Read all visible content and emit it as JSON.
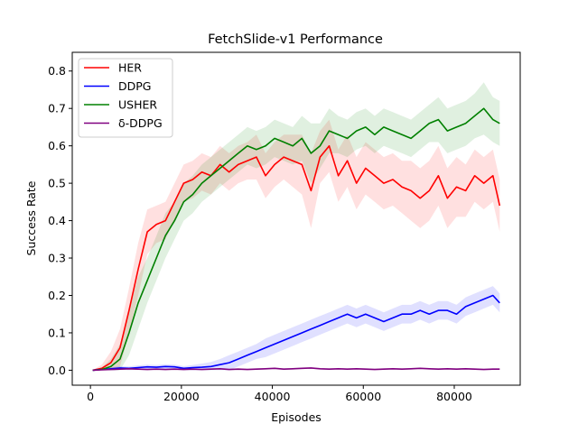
{
  "chart_data": {
    "type": "line",
    "title": "FetchSlide-v1 Performance",
    "xlabel": "Episodes",
    "ylabel": "Success Rate",
    "xlim": [
      -4000,
      94500
    ],
    "ylim": [
      -0.04,
      0.85
    ],
    "xticks": [
      0,
      20000,
      40000,
      60000,
      80000
    ],
    "xtick_labels": [
      "0",
      "20000",
      "40000",
      "60000",
      "80000"
    ],
    "yticks": [
      0.0,
      0.1,
      0.2,
      0.3,
      0.4,
      0.5,
      0.6,
      0.7,
      0.8
    ],
    "ytick_labels": [
      "0.0",
      "0.1",
      "0.2",
      "0.3",
      "0.4",
      "0.5",
      "0.6",
      "0.7",
      "0.8"
    ],
    "grid": false,
    "legend_position": "top-left",
    "x": [
      500,
      2500,
      4500,
      6500,
      8500,
      10500,
      12500,
      14500,
      16500,
      18500,
      20500,
      22500,
      24500,
      26500,
      28500,
      30500,
      32500,
      34500,
      36500,
      38500,
      40500,
      42500,
      44500,
      46500,
      48500,
      50500,
      52500,
      54500,
      56500,
      58500,
      60500,
      62500,
      64500,
      66500,
      68500,
      70500,
      72500,
      74500,
      76500,
      78500,
      80500,
      82500,
      84500,
      86500,
      88500,
      90000
    ],
    "series": [
      {
        "name": "HER",
        "color": "#ff0000",
        "values": [
          0.0,
          0.005,
          0.02,
          0.06,
          0.16,
          0.27,
          0.37,
          0.39,
          0.4,
          0.45,
          0.5,
          0.51,
          0.53,
          0.52,
          0.55,
          0.53,
          0.55,
          0.56,
          0.57,
          0.52,
          0.55,
          0.57,
          0.56,
          0.55,
          0.48,
          0.57,
          0.6,
          0.52,
          0.56,
          0.5,
          0.54,
          0.52,
          0.5,
          0.51,
          0.49,
          0.48,
          0.46,
          0.48,
          0.52,
          0.46,
          0.49,
          0.48,
          0.52,
          0.5,
          0.52,
          0.44
        ],
        "band": [
          0.0,
          0.01,
          0.03,
          0.05,
          0.06,
          0.07,
          0.06,
          0.05,
          0.05,
          0.05,
          0.05,
          0.05,
          0.05,
          0.05,
          0.05,
          0.05,
          0.05,
          0.05,
          0.06,
          0.06,
          0.06,
          0.06,
          0.07,
          0.08,
          0.1,
          0.07,
          0.07,
          0.07,
          0.07,
          0.07,
          0.07,
          0.07,
          0.07,
          0.07,
          0.07,
          0.08,
          0.08,
          0.08,
          0.08,
          0.08,
          0.08,
          0.07,
          0.07,
          0.07,
          0.07,
          0.07
        ]
      },
      {
        "name": "DDPG",
        "color": "#0000ff",
        "values": [
          0.0,
          0.002,
          0.004,
          0.006,
          0.005,
          0.007,
          0.009,
          0.008,
          0.01,
          0.009,
          0.005,
          0.007,
          0.008,
          0.01,
          0.015,
          0.02,
          0.03,
          0.04,
          0.05,
          0.06,
          0.07,
          0.08,
          0.09,
          0.1,
          0.11,
          0.12,
          0.13,
          0.14,
          0.15,
          0.14,
          0.15,
          0.14,
          0.13,
          0.14,
          0.15,
          0.15,
          0.16,
          0.15,
          0.16,
          0.16,
          0.15,
          0.17,
          0.18,
          0.19,
          0.2,
          0.18
        ],
        "band": [
          0.003,
          0.004,
          0.004,
          0.005,
          0.005,
          0.006,
          0.006,
          0.006,
          0.006,
          0.006,
          0.006,
          0.007,
          0.01,
          0.012,
          0.015,
          0.02,
          0.02,
          0.02,
          0.02,
          0.025,
          0.025,
          0.025,
          0.025,
          0.025,
          0.025,
          0.025,
          0.025,
          0.025,
          0.025,
          0.025,
          0.025,
          0.025,
          0.025,
          0.025,
          0.025,
          0.025,
          0.025,
          0.025,
          0.025,
          0.025,
          0.025,
          0.025,
          0.025,
          0.025,
          0.025,
          0.025
        ]
      },
      {
        "name": "USHER",
        "color": "#008000",
        "values": [
          0.0,
          0.002,
          0.01,
          0.03,
          0.1,
          0.18,
          0.24,
          0.3,
          0.36,
          0.4,
          0.45,
          0.47,
          0.5,
          0.52,
          0.54,
          0.56,
          0.58,
          0.6,
          0.59,
          0.6,
          0.62,
          0.61,
          0.6,
          0.62,
          0.58,
          0.6,
          0.64,
          0.63,
          0.62,
          0.64,
          0.65,
          0.63,
          0.65,
          0.64,
          0.63,
          0.62,
          0.64,
          0.66,
          0.67,
          0.64,
          0.65,
          0.66,
          0.68,
          0.7,
          0.67,
          0.66
        ],
        "band": [
          0.0,
          0.005,
          0.02,
          0.04,
          0.06,
          0.07,
          0.06,
          0.06,
          0.06,
          0.05,
          0.05,
          0.05,
          0.05,
          0.05,
          0.05,
          0.05,
          0.05,
          0.05,
          0.05,
          0.05,
          0.05,
          0.05,
          0.05,
          0.06,
          0.08,
          0.06,
          0.06,
          0.05,
          0.05,
          0.05,
          0.05,
          0.05,
          0.05,
          0.05,
          0.05,
          0.05,
          0.05,
          0.05,
          0.06,
          0.06,
          0.06,
          0.06,
          0.06,
          0.07,
          0.06,
          0.06
        ]
      },
      {
        "name": "δ-DDPG",
        "color": "#800080",
        "values": [
          0.0,
          0.001,
          0.002,
          0.003,
          0.004,
          0.003,
          0.002,
          0.003,
          0.002,
          0.003,
          0.002,
          0.003,
          0.002,
          0.003,
          0.004,
          0.002,
          0.003,
          0.002,
          0.003,
          0.004,
          0.005,
          0.003,
          0.004,
          0.005,
          0.006,
          0.004,
          0.003,
          0.004,
          0.003,
          0.004,
          0.003,
          0.002,
          0.003,
          0.004,
          0.003,
          0.004,
          0.005,
          0.004,
          0.003,
          0.004,
          0.003,
          0.004,
          0.003,
          0.002,
          0.003,
          0.003
        ],
        "band": [
          0.002,
          0.002,
          0.002,
          0.002,
          0.002,
          0.002,
          0.002,
          0.002,
          0.002,
          0.002,
          0.002,
          0.002,
          0.002,
          0.002,
          0.002,
          0.002,
          0.002,
          0.002,
          0.002,
          0.002,
          0.002,
          0.002,
          0.002,
          0.002,
          0.002,
          0.002,
          0.002,
          0.002,
          0.002,
          0.002,
          0.002,
          0.002,
          0.002,
          0.002,
          0.002,
          0.002,
          0.002,
          0.002,
          0.002,
          0.002,
          0.002,
          0.002,
          0.002,
          0.002,
          0.002,
          0.002
        ]
      }
    ]
  }
}
